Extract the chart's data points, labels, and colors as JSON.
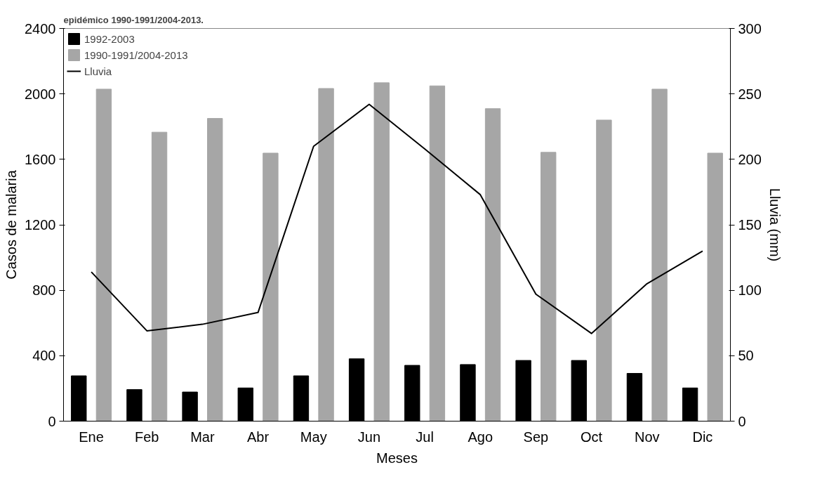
{
  "chart_data": {
    "type": "bar",
    "title": "epidémico 1990-1991/2004-2013.",
    "xlabel": "Meses",
    "ylabel": "Casos de malaria",
    "y2label": "Lluvia (mm)",
    "categories": [
      "Ene",
      "Feb",
      "Mar",
      "Abr",
      "May",
      "Jun",
      "Jul",
      "Ago",
      "Sep",
      "Oct",
      "Nov",
      "Dic"
    ],
    "series": [
      {
        "name": "1992-2003",
        "color": "#000000",
        "values": [
          277,
          193,
          178,
          203,
          277,
          381,
          341,
          346,
          371,
          371,
          292,
          203
        ]
      },
      {
        "name": "1990-1991/2004-2013",
        "color": "#a6a6a6",
        "values": [
          2029,
          1766,
          1850,
          1638,
          2033,
          2068,
          2049,
          1910,
          1643,
          1840,
          2029,
          1638
        ]
      },
      {
        "name": "Lluvia",
        "type": "line",
        "axis": "y2",
        "color": "#000000",
        "values": [
          114,
          69,
          74,
          83,
          210,
          242,
          208,
          173,
          97,
          67,
          105,
          130
        ]
      }
    ],
    "ylim": [
      0,
      2400
    ],
    "yticks": [
      0,
      400,
      800,
      1200,
      1600,
      2000,
      2400
    ],
    "y2lim": [
      0,
      300
    ],
    "y2ticks": [
      0,
      50,
      100,
      150,
      200,
      250,
      300
    ],
    "grid": false,
    "legend": "top left"
  }
}
